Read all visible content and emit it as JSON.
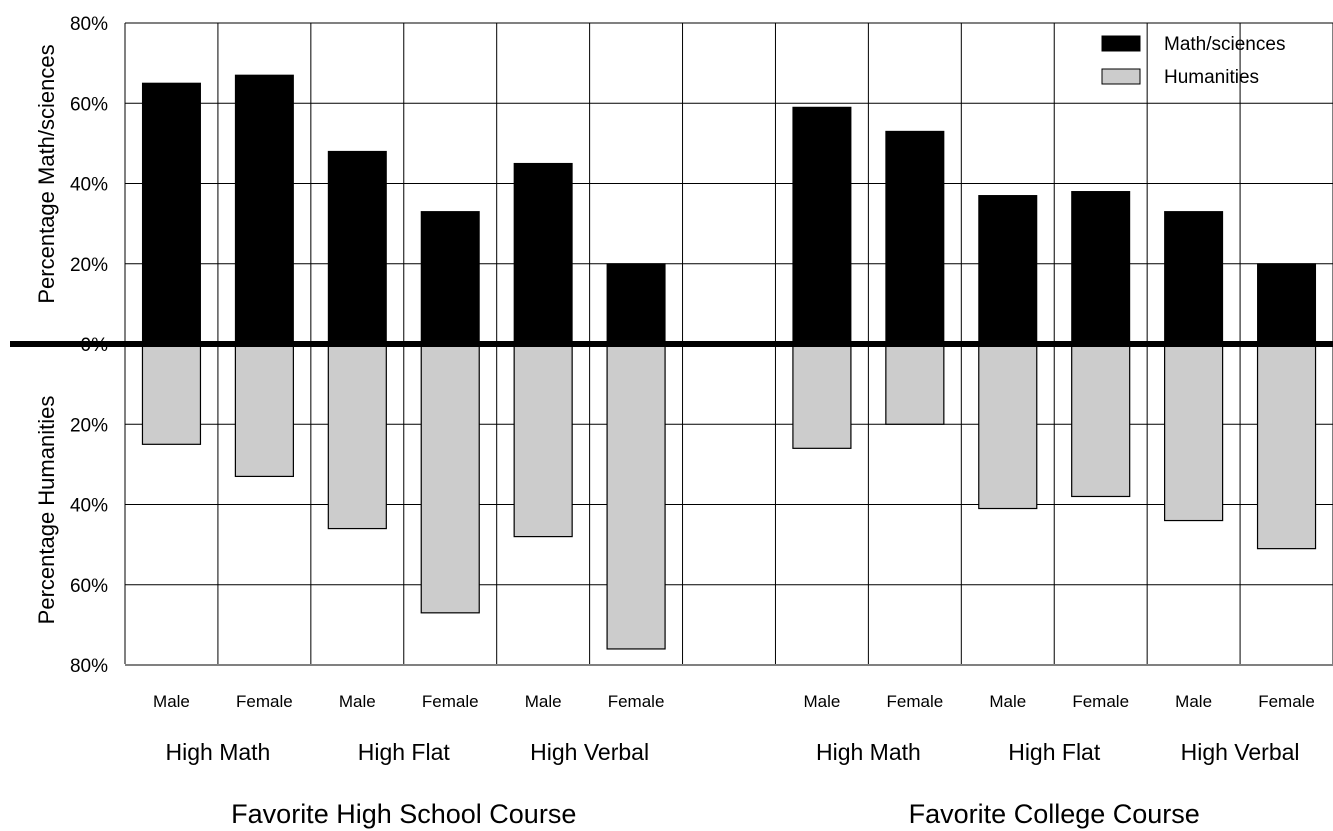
{
  "chart_data": {
    "type": "bar",
    "orientation": "diverging-vertical",
    "sections": [
      "Favorite High School Course",
      "Favorite College Course"
    ],
    "groups": [
      "High Math",
      "High Flat",
      "High Verbal"
    ],
    "genders": [
      "Male",
      "Female"
    ],
    "y_upper_label": "Percentage Math/sciences",
    "y_lower_label": "Percentage Humanities",
    "y_ticks": [
      "80%",
      "60%",
      "40%",
      "20%",
      "0%",
      "20%",
      "40%",
      "60%",
      "80%"
    ],
    "ylim": [
      -80,
      80
    ],
    "grid": true,
    "legend_position": "top-right",
    "series": [
      {
        "name": "Math/sciences",
        "color": "#000000",
        "direction": "up",
        "values": [
          65,
          67,
          48,
          33,
          45,
          20,
          59,
          53,
          37,
          38,
          33,
          20
        ]
      },
      {
        "name": "Humanities",
        "color": "#cccccc",
        "direction": "down",
        "values": [
          25,
          33,
          46,
          67,
          48,
          76,
          26,
          20,
          41,
          38,
          44,
          51
        ]
      }
    ]
  }
}
